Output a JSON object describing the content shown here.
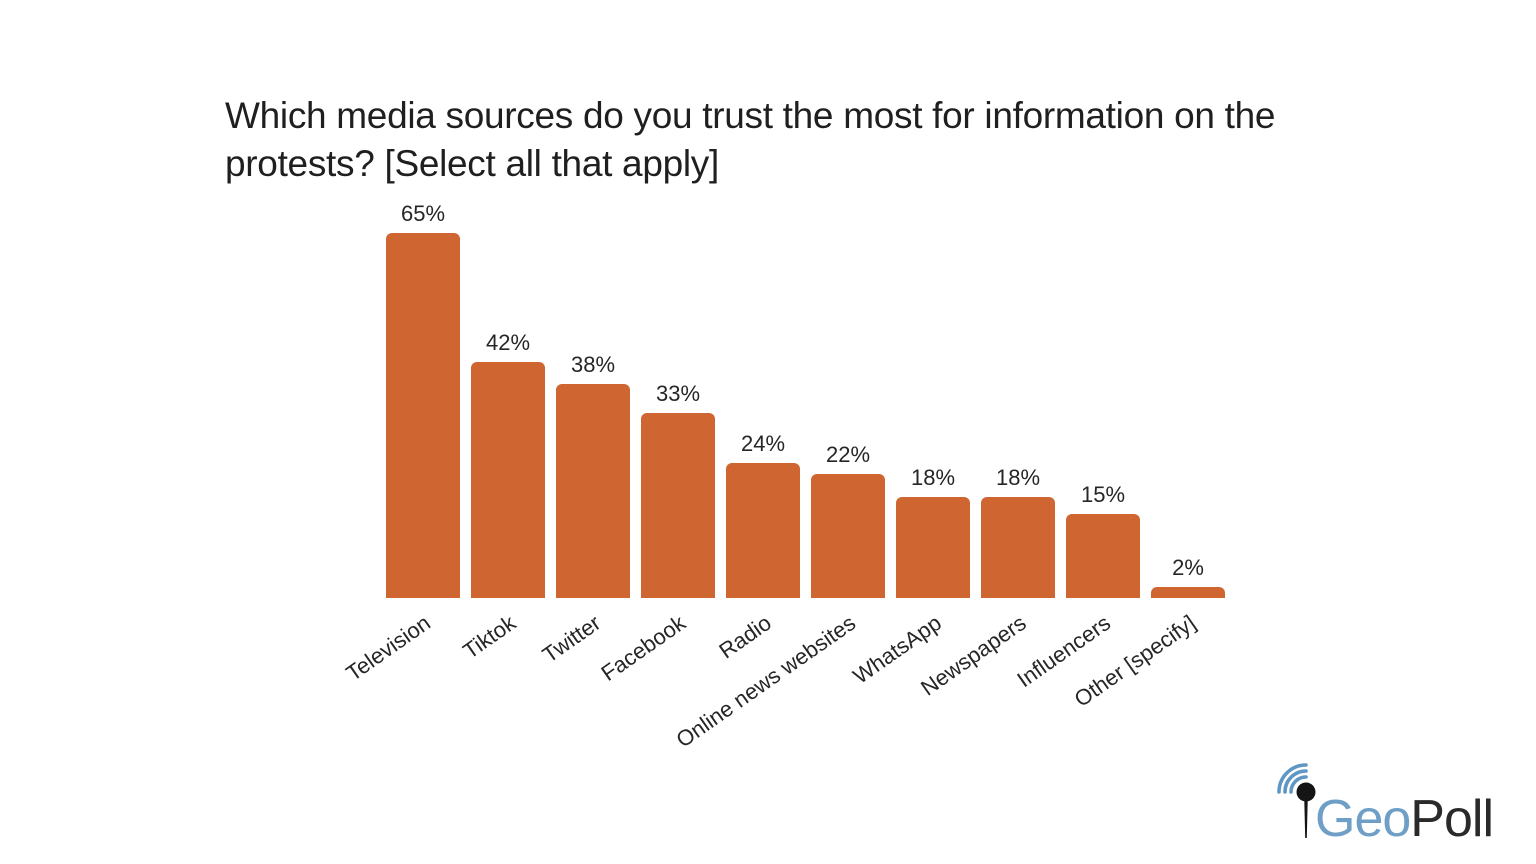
{
  "title": {
    "line1": "Which media sources do you trust the most for information on the",
    "line2": "protests? [Select all that apply]"
  },
  "chart_data": {
    "type": "bar",
    "title": "Which media sources do you trust the most for information on the protests? [Select all that apply]",
    "categories": [
      "Television",
      "Tiktok",
      "Twitter",
      "Facebook",
      "Radio",
      "Online news websites",
      "WhatsApp",
      "Newspapers",
      "Influencers",
      "Other [specify]"
    ],
    "values": [
      65,
      42,
      38,
      33,
      24,
      22,
      18,
      18,
      15,
      2
    ],
    "value_labels": [
      "65%",
      "42%",
      "38%",
      "33%",
      "24%",
      "22%",
      "18%",
      "18%",
      "15%",
      "2%"
    ],
    "xlabel": "",
    "ylabel": "",
    "ylim": [
      0,
      70
    ],
    "grid": false,
    "legend": "none",
    "bar_color": "#CF6530",
    "value_label_position": "above-bar",
    "tick_label_rotation_deg": -35
  },
  "logo": {
    "brand_first": "Geo",
    "brand_second": "Poll",
    "blue": "#6F9FC6",
    "dark": "#2A2A2A",
    "icon": "map-pin-with-signal-waves-icon"
  }
}
